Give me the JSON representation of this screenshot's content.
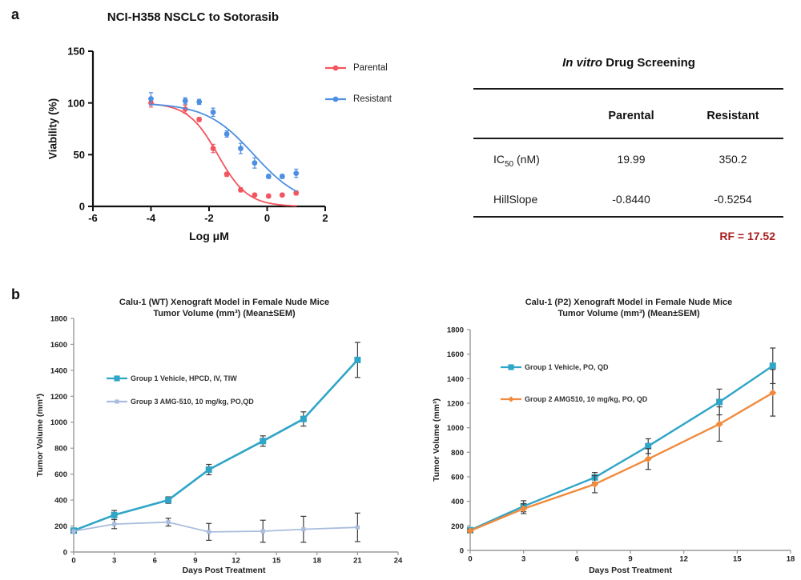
{
  "panels": {
    "a": "a",
    "b": "b"
  },
  "colors": {
    "parental_red": "#F2555E",
    "resistant_blue": "#4D8FE0",
    "vehicle_teal": "#2FA5C7",
    "amg510_light_blue": "#AABDDE",
    "amg510_orange": "#F08A3C",
    "rf_dark_red": "#A81E1F",
    "error_bar_gray": "#3C3C3C"
  },
  "table": {
    "title_italic": "In vitro",
    "title_rest": " Drug Screening",
    "col_headers": [
      "Parental",
      "Resistant"
    ],
    "rows": [
      {
        "label_pre": "IC",
        "label_sub": "50",
        "label_post": " (nM)",
        "parental": "19.99",
        "resistant": "350.2"
      },
      {
        "label_pre": "HillSlope",
        "label_sub": "",
        "label_post": "",
        "parental": "-0.8440",
        "resistant": "-0.5254"
      }
    ],
    "rf_note": "RF = 17.52"
  },
  "chart_data": [
    {
      "id": "nci-h358-dose-response",
      "type": "scatter",
      "title": "NCI-H358 NSCLC to Sotorasib",
      "xlabel": "Log μM",
      "ylabel": "Viability (%)",
      "xlim": [
        -6,
        2
      ],
      "ylim": [
        0,
        150
      ],
      "xticks": [
        -6,
        -4,
        -2,
        0,
        2
      ],
      "yticks": [
        0,
        50,
        100,
        150
      ],
      "grid": false,
      "legend_position": "right-top",
      "series": [
        {
          "name": "Parental",
          "color": "#F2555E",
          "marker": "circle",
          "msize": 3.4,
          "width": 1.8,
          "x": [
            -4,
            -2.82,
            -2.34,
            -1.86,
            -1.39,
            -0.91,
            -0.43,
            0.05,
            0.52,
            1.0
          ],
          "y": [
            100,
            94,
            84,
            56,
            31,
            16,
            11,
            10,
            11,
            13
          ],
          "err": [
            4,
            4,
            2,
            4,
            2,
            2,
            1.5,
            1.5,
            1.5,
            2
          ],
          "fit": {
            "top": 100,
            "bottom": 0,
            "logIC50": -1.699,
            "hillslope": -0.844,
            "range": [
              -4,
              1
            ]
          }
        },
        {
          "name": "Resistant",
          "color": "#4D8FE0",
          "marker": "circle",
          "msize": 3.4,
          "width": 1.8,
          "x": [
            -4,
            -2.82,
            -2.34,
            -1.86,
            -1.39,
            -0.91,
            -0.43,
            0.05,
            0.52,
            1.0
          ],
          "y": [
            104,
            102,
            101,
            91,
            70,
            56,
            42,
            29,
            29,
            32
          ],
          "err": [
            6,
            3,
            2.5,
            4,
            3,
            5,
            5,
            2,
            2,
            4
          ],
          "fit": {
            "top": 100,
            "bottom": 0,
            "logIC50": -0.456,
            "hillslope": -0.5254,
            "range": [
              -4,
              1
            ]
          }
        }
      ]
    },
    {
      "id": "calu1-wt-xenograft",
      "type": "line",
      "title_line1": "Calu-1 (WT) Xenograft Model in Female Nude Mice",
      "title_line2": "Tumor Volume (mm³) (Mean±SEM)",
      "xlabel": "Days Post Treatment",
      "ylabel": "Tumor Volume (mm³)",
      "xlim": [
        0,
        24
      ],
      "ylim": [
        0,
        1800
      ],
      "xticks": [
        0,
        3,
        6,
        9,
        12,
        15,
        18,
        21,
        24
      ],
      "yticks": [
        0,
        200,
        400,
        600,
        800,
        1000,
        1200,
        1400,
        1600,
        1800
      ],
      "grid": false,
      "legend_position": "upper-left-inside",
      "series": [
        {
          "name": "Group 1 Vehicle, HPCD, IV, TIW",
          "color": "#2FA5C7",
          "err_color": "#3C3C3C",
          "marker": "square",
          "msize": 4,
          "width": 2.6,
          "x": [
            0,
            3,
            7,
            10,
            14,
            17,
            21
          ],
          "y": [
            165,
            285,
            400,
            635,
            855,
            1025,
            1480
          ],
          "err": [
            15,
            35,
            25,
            40,
            40,
            55,
            135
          ]
        },
        {
          "name": "Group 3 AMG-510, 10 mg/kg, PO,QD",
          "color": "#AABDDE",
          "err_color": "#3C3C3C",
          "marker": "square",
          "msize": 2.6,
          "width": 1.8,
          "x": [
            0,
            3,
            7,
            10,
            14,
            17,
            21
          ],
          "y": [
            160,
            215,
            230,
            155,
            160,
            175,
            190
          ],
          "err": [
            10,
            35,
            30,
            65,
            85,
            100,
            110
          ]
        }
      ]
    },
    {
      "id": "calu1-p2-xenograft",
      "type": "line",
      "title_line1": "Calu-1 (P2) Xenograft Model in Female Nude Mice",
      "title_line2": "Tumor Volume (mm³) (Mean±SEM)",
      "xlabel": "Days Post Treatment",
      "ylabel": "Tumor Volume (mm³)",
      "xlim": [
        0,
        18
      ],
      "ylim": [
        0,
        1800
      ],
      "xticks": [
        0,
        3,
        6,
        9,
        12,
        15,
        18
      ],
      "yticks": [
        0,
        200,
        400,
        600,
        800,
        1000,
        1200,
        1400,
        1600,
        1800
      ],
      "grid": false,
      "legend_position": "upper-left-inside",
      "series": [
        {
          "name": "Group 1 Vehicle, PO, QD",
          "color": "#2FA5C7",
          "err_color": "#3C3C3C",
          "marker": "square",
          "msize": 4,
          "width": 2.4,
          "x": [
            0,
            3,
            7,
            10,
            14,
            17
          ],
          "y": [
            165,
            360,
            595,
            850,
            1210,
            1505
          ],
          "err": [
            12,
            45,
            40,
            60,
            105,
            145
          ]
        },
        {
          "name": "Group 2 AMG510, 10 mg/kg, PO, QD",
          "color": "#F08A3C",
          "err_color": "#3C3C3C",
          "marker": "diamond",
          "msize": 4.5,
          "width": 2.4,
          "x": [
            0,
            3,
            7,
            10,
            14,
            17
          ],
          "y": [
            160,
            340,
            540,
            745,
            1030,
            1285
          ],
          "err": [
            12,
            40,
            70,
            85,
            140,
            190
          ]
        }
      ]
    }
  ]
}
